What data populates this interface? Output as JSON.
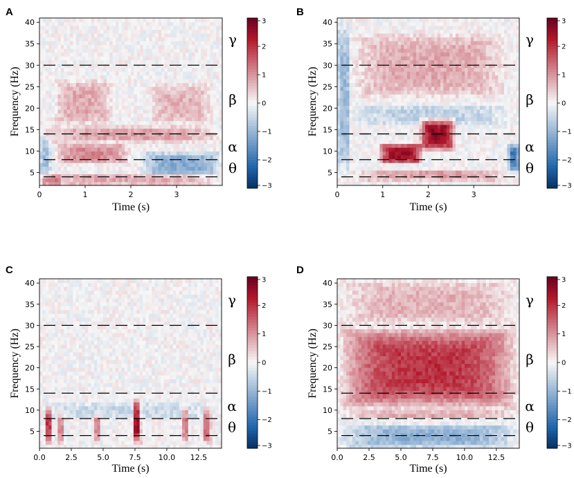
{
  "figure": {
    "type": "spectrogram-panels",
    "n_panels": 4
  },
  "colormap": {
    "name": "RdBu_r",
    "low": "#2166ac",
    "mid": "#f7f7f7",
    "high": "#b2182b"
  },
  "chart_data": [
    {
      "panel": "A",
      "type": "heatmap",
      "xlabel": "Time (s)",
      "ylabel": "Frequency (Hz)",
      "xlim": [
        0,
        4
      ],
      "ylim": [
        2,
        41
      ],
      "xticks": [
        0,
        1,
        2,
        3
      ],
      "xtick_labels": [
        "0",
        "1",
        "2",
        "3"
      ],
      "yticks": [
        5,
        10,
        15,
        20,
        25,
        30,
        35,
        40
      ],
      "colorbar": {
        "min": -3,
        "max": 3,
        "ticks": [
          3,
          2,
          1,
          0,
          -1,
          -2,
          -3
        ],
        "tick_labels": [
          "3",
          "2",
          "1",
          "0",
          "−1",
          "−2",
          "−3"
        ]
      },
      "band_boundaries_hz": [
        4,
        8,
        14,
        30
      ],
      "band_labels": [
        {
          "symbol": "γ",
          "hz": 36
        },
        {
          "symbol": "β",
          "hz": 22
        },
        {
          "symbol": "α",
          "hz": 11
        },
        {
          "symbol": "θ",
          "hz": 6
        }
      ],
      "features": [
        {
          "t0": 0.3,
          "t1": 1.6,
          "f0": 16,
          "f1": 27,
          "value": 0.8
        },
        {
          "t0": 2.4,
          "t1": 3.8,
          "f0": 16,
          "f1": 26,
          "value": 0.7
        },
        {
          "t0": 0.0,
          "t1": 4.0,
          "f0": 12,
          "f1": 16,
          "value": 0.9
        },
        {
          "t0": 0.3,
          "t1": 2.0,
          "f0": 7,
          "f1": 12,
          "value": 1.1
        },
        {
          "t0": 2.2,
          "t1": 4.0,
          "f0": 4,
          "f1": 10,
          "value": -1.2
        },
        {
          "t0": 0.0,
          "t1": 0.25,
          "f0": 4,
          "f1": 14,
          "value": -0.9
        },
        {
          "t0": 0.0,
          "t1": 4.0,
          "f0": 2,
          "f1": 5,
          "value": 0.8
        },
        {
          "t0": 0.0,
          "t1": 0.5,
          "f0": 2,
          "f1": 4.5,
          "value": 1.0
        }
      ]
    },
    {
      "panel": "B",
      "type": "heatmap",
      "xlabel": "Time (s)",
      "ylabel": "Frequency (Hz)",
      "xlim": [
        0,
        4
      ],
      "ylim": [
        2,
        41
      ],
      "xticks": [
        0,
        1,
        2,
        3
      ],
      "xtick_labels": [
        "0",
        "1",
        "2",
        "3"
      ],
      "yticks": [
        5,
        10,
        15,
        20,
        25,
        30,
        35,
        40
      ],
      "colorbar": {
        "min": -3,
        "max": 3,
        "ticks": [
          3,
          2,
          1,
          0,
          -1,
          -2,
          -3
        ],
        "tick_labels": [
          "3",
          "2",
          "1",
          "0",
          "−1",
          "−2",
          "−3"
        ]
      },
      "band_boundaries_hz": [
        4,
        8,
        14,
        30
      ],
      "band_labels": [
        {
          "symbol": "γ",
          "hz": 36
        },
        {
          "symbol": "β",
          "hz": 22
        },
        {
          "symbol": "α",
          "hz": 11
        },
        {
          "symbol": "θ",
          "hz": 6
        }
      ],
      "features": [
        {
          "t0": 0.9,
          "t1": 1.9,
          "f0": 7,
          "f1": 12,
          "value": 2.5
        },
        {
          "t0": 1.8,
          "t1": 2.6,
          "f0": 10,
          "f1": 18,
          "value": 2.6
        },
        {
          "t0": 0.3,
          "t1": 3.8,
          "f0": 22,
          "f1": 38,
          "value": 0.8
        },
        {
          "t0": 0.3,
          "t1": 3.8,
          "f0": 16,
          "f1": 21,
          "value": -0.6
        },
        {
          "t0": 0.0,
          "t1": 0.3,
          "f0": 4,
          "f1": 41,
          "value": -1.0
        },
        {
          "t0": 3.75,
          "t1": 4.0,
          "f0": 5,
          "f1": 12,
          "value": -2.0
        },
        {
          "t0": 0.3,
          "t1": 3.8,
          "f0": 3,
          "f1": 6,
          "value": 0.9
        }
      ]
    },
    {
      "panel": "C",
      "type": "heatmap",
      "xlabel": "Time (s)",
      "ylabel": "Frequency (Hz)",
      "xlim": [
        0,
        14.3
      ],
      "ylim": [
        1,
        41
      ],
      "xticks": [
        0,
        2.5,
        5,
        7.5,
        10,
        12.5
      ],
      "xtick_labels": [
        "0.0",
        "2.5",
        "5.0",
        "7.5",
        "10.0",
        "12.5"
      ],
      "yticks": [
        5,
        10,
        15,
        20,
        25,
        30,
        35,
        40
      ],
      "colorbar": {
        "min": -3,
        "max": 3,
        "ticks": [
          3,
          2,
          1,
          0,
          -1,
          -2,
          -3
        ],
        "tick_labels": [
          "3",
          "2",
          "1",
          "0",
          "−1",
          "−2",
          "−3"
        ]
      },
      "band_boundaries_hz": [
        4,
        8,
        14,
        30
      ],
      "band_labels": [
        {
          "symbol": "γ",
          "hz": 36
        },
        {
          "symbol": "β",
          "hz": 22
        },
        {
          "symbol": "α",
          "hz": 11
        },
        {
          "symbol": "θ",
          "hz": 6
        }
      ],
      "features": [
        {
          "t0": 0.4,
          "t1": 1.0,
          "f0": 2,
          "f1": 11,
          "value": 2.0
        },
        {
          "t0": 1.4,
          "t1": 1.9,
          "f0": 2,
          "f1": 10,
          "value": 1.2
        },
        {
          "t0": 4.3,
          "t1": 4.8,
          "f0": 2,
          "f1": 10,
          "value": 1.2
        },
        {
          "t0": 7.3,
          "t1": 8.0,
          "f0": 2,
          "f1": 13,
          "value": 2.6
        },
        {
          "t0": 11.2,
          "t1": 11.8,
          "f0": 2,
          "f1": 12,
          "value": 1.3
        },
        {
          "t0": 12.8,
          "t1": 13.5,
          "f0": 2,
          "f1": 11,
          "value": 1.5
        },
        {
          "t0": 0.0,
          "t1": 14.3,
          "f0": 8,
          "f1": 12,
          "value": -0.5
        }
      ]
    },
    {
      "panel": "D",
      "type": "heatmap",
      "xlabel": "Time (s)",
      "ylabel": "Frequency (Hz)",
      "xlim": [
        0,
        14.3
      ],
      "ylim": [
        1,
        41
      ],
      "xticks": [
        0,
        2.5,
        5,
        7.5,
        10,
        12.5
      ],
      "xtick_labels": [
        "0.0",
        "2.5",
        "5.0",
        "7.5",
        "10.0",
        "12.5"
      ],
      "yticks": [
        5,
        10,
        15,
        20,
        25,
        30,
        35,
        40
      ],
      "colorbar": {
        "min": -3,
        "max": 3,
        "ticks": [
          3,
          2,
          1,
          0,
          -1,
          -2,
          -3
        ],
        "tick_labels": [
          "3",
          "2",
          "1",
          "0",
          "−1",
          "−2",
          "−3"
        ]
      },
      "band_boundaries_hz": [
        4,
        8,
        14,
        30
      ],
      "band_labels": [
        {
          "symbol": "γ",
          "hz": 36
        },
        {
          "symbol": "β",
          "hz": 22
        },
        {
          "symbol": "α",
          "hz": 11
        },
        {
          "symbol": "θ",
          "hz": 6
        }
      ],
      "features": [
        {
          "t0": 0.0,
          "t1": 14.3,
          "f0": 10,
          "f1": 30,
          "value": 2.0
        },
        {
          "t0": 0.0,
          "t1": 14.3,
          "f0": 30,
          "f1": 41,
          "value": 0.7
        },
        {
          "t0": 0.0,
          "t1": 14.3,
          "f0": 8,
          "f1": 10,
          "value": 0.8
        },
        {
          "t0": 0.0,
          "t1": 14.3,
          "f0": 1,
          "f1": 7,
          "value": -1.1
        }
      ]
    }
  ]
}
